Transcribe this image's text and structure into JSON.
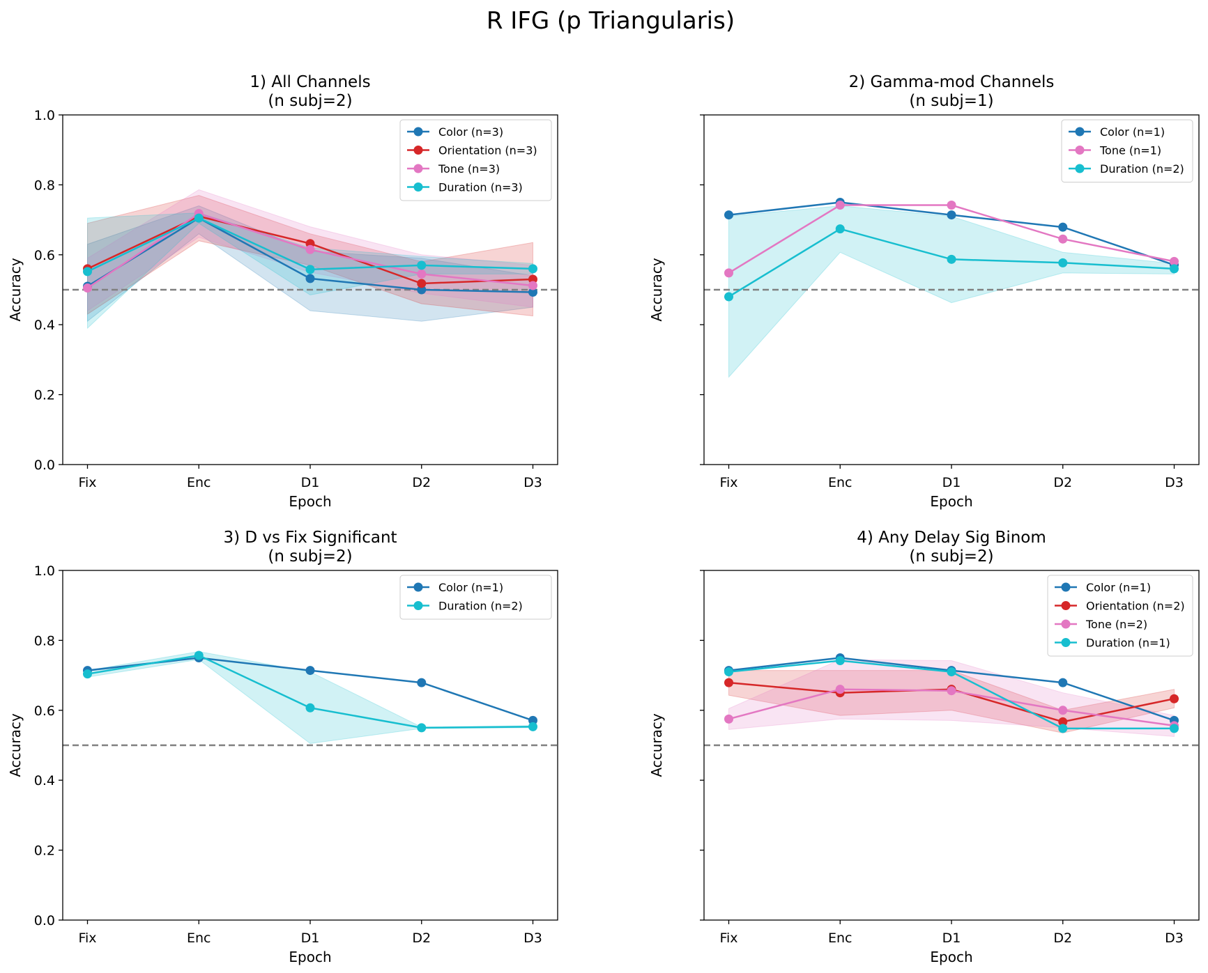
{
  "figure": {
    "title": "R IFG (p Triangularis)"
  },
  "chance_level": 0.5,
  "chart_data": [
    {
      "type": "line",
      "title": "1) All Channels",
      "subtitle": "(n subj=2)",
      "xlabel": "Epoch",
      "ylabel": "Accuracy",
      "categories": [
        "Fix",
        "Enc",
        "D1",
        "D2",
        "D3"
      ],
      "ylim": [
        0,
        1
      ],
      "yticks": [
        "0.0",
        "0.2",
        "0.4",
        "0.6",
        "0.8",
        "1.0"
      ],
      "show_yticklabels": true,
      "legend_position": "top-right",
      "series": [
        {
          "name": "Color (n=3)",
          "color": "#1f77b4",
          "values": [
            0.51,
            0.705,
            0.532,
            0.5,
            0.493
          ],
          "lower": [
            0.41,
            0.66,
            0.44,
            0.41,
            0.45
          ],
          "upper": [
            0.63,
            0.74,
            0.61,
            0.59,
            0.54
          ]
        },
        {
          "name": "Orientation (n=3)",
          "color": "#d62728",
          "values": [
            0.56,
            0.71,
            0.632,
            0.518,
            0.53
          ],
          "lower": [
            0.43,
            0.64,
            0.57,
            0.46,
            0.425
          ],
          "upper": [
            0.69,
            0.77,
            0.66,
            0.58,
            0.635
          ]
        },
        {
          "name": "Tone (n=3)",
          "color": "#e377c2",
          "values": [
            0.505,
            0.718,
            0.615,
            0.545,
            0.512
          ],
          "lower": [
            0.44,
            0.65,
            0.55,
            0.49,
            0.45
          ],
          "upper": [
            0.59,
            0.786,
            0.68,
            0.6,
            0.57
          ]
        },
        {
          "name": "Duration (n=3)",
          "color": "#17becf",
          "values": [
            0.552,
            0.705,
            0.558,
            0.57,
            0.56
          ],
          "lower": [
            0.39,
            0.69,
            0.485,
            0.545,
            0.545
          ],
          "upper": [
            0.705,
            0.72,
            0.62,
            0.595,
            0.575
          ]
        }
      ]
    },
    {
      "type": "line",
      "title": "2) Gamma-mod Channels",
      "subtitle": "(n subj=1)",
      "xlabel": "Epoch",
      "ylabel": "Accuracy",
      "categories": [
        "Fix",
        "Enc",
        "D1",
        "D2",
        "D3"
      ],
      "ylim": [
        0,
        1
      ],
      "yticks": [
        "0.0",
        "0.2",
        "0.4",
        "0.6",
        "0.8",
        "1.0"
      ],
      "show_yticklabels": false,
      "legend_position": "top-right",
      "series": [
        {
          "name": "Color (n=1)",
          "color": "#1f77b4",
          "values": [
            0.714,
            0.75,
            0.714,
            0.679,
            0.571
          ]
        },
        {
          "name": "Tone (n=1)",
          "color": "#e377c2",
          "values": [
            0.548,
            0.742,
            0.742,
            0.645,
            0.581
          ]
        },
        {
          "name": "Duration (n=2)",
          "color": "#17becf",
          "values": [
            0.48,
            0.674,
            0.587,
            0.577,
            0.56
          ],
          "lower": [
            0.25,
            0.607,
            0.463,
            0.548,
            0.545
          ],
          "upper": [
            0.71,
            0.74,
            0.71,
            0.607,
            0.575
          ]
        }
      ]
    },
    {
      "type": "line",
      "title": "3) D vs Fix Significant",
      "subtitle": "(n subj=2)",
      "xlabel": "Epoch",
      "ylabel": "Accuracy",
      "categories": [
        "Fix",
        "Enc",
        "D1",
        "D2",
        "D3"
      ],
      "ylim": [
        0,
        1
      ],
      "yticks": [
        "0.0",
        "0.2",
        "0.4",
        "0.6",
        "0.8",
        "1.0"
      ],
      "show_yticklabels": true,
      "legend_position": "top-right",
      "series": [
        {
          "name": "Color (n=1)",
          "color": "#1f77b4",
          "values": [
            0.714,
            0.75,
            0.714,
            0.679,
            0.571
          ]
        },
        {
          "name": "Duration (n=2)",
          "color": "#17becf",
          "values": [
            0.704,
            0.757,
            0.607,
            0.55,
            0.553
          ],
          "lower": [
            0.695,
            0.745,
            0.505,
            0.548,
            0.55
          ],
          "upper": [
            0.714,
            0.768,
            0.71,
            0.552,
            0.556
          ]
        }
      ]
    },
    {
      "type": "line",
      "title": "4) Any Delay Sig Binom",
      "subtitle": "(n subj=2)",
      "xlabel": "Epoch",
      "ylabel": "Accuracy",
      "categories": [
        "Fix",
        "Enc",
        "D1",
        "D2",
        "D3"
      ],
      "ylim": [
        0,
        1
      ],
      "yticks": [
        "0.0",
        "0.2",
        "0.4",
        "0.6",
        "0.8",
        "1.0"
      ],
      "show_yticklabels": false,
      "legend_position": "top-right",
      "series": [
        {
          "name": "Color (n=1)",
          "color": "#1f77b4",
          "values": [
            0.714,
            0.75,
            0.714,
            0.679,
            0.571
          ]
        },
        {
          "name": "Orientation (n=2)",
          "color": "#d62728",
          "values": [
            0.679,
            0.65,
            0.66,
            0.567,
            0.633
          ],
          "lower": [
            0.643,
            0.585,
            0.6,
            0.535,
            0.607
          ],
          "upper": [
            0.714,
            0.714,
            0.714,
            0.6,
            0.66
          ]
        },
        {
          "name": "Tone (n=2)",
          "color": "#e377c2",
          "values": [
            0.575,
            0.66,
            0.656,
            0.6,
            0.556
          ],
          "lower": [
            0.545,
            0.575,
            0.571,
            0.55,
            0.525
          ],
          "upper": [
            0.605,
            0.745,
            0.742,
            0.65,
            0.585
          ]
        },
        {
          "name": "Duration (n=1)",
          "color": "#17becf",
          "values": [
            0.71,
            0.742,
            0.71,
            0.548,
            0.548
          ]
        }
      ]
    }
  ]
}
